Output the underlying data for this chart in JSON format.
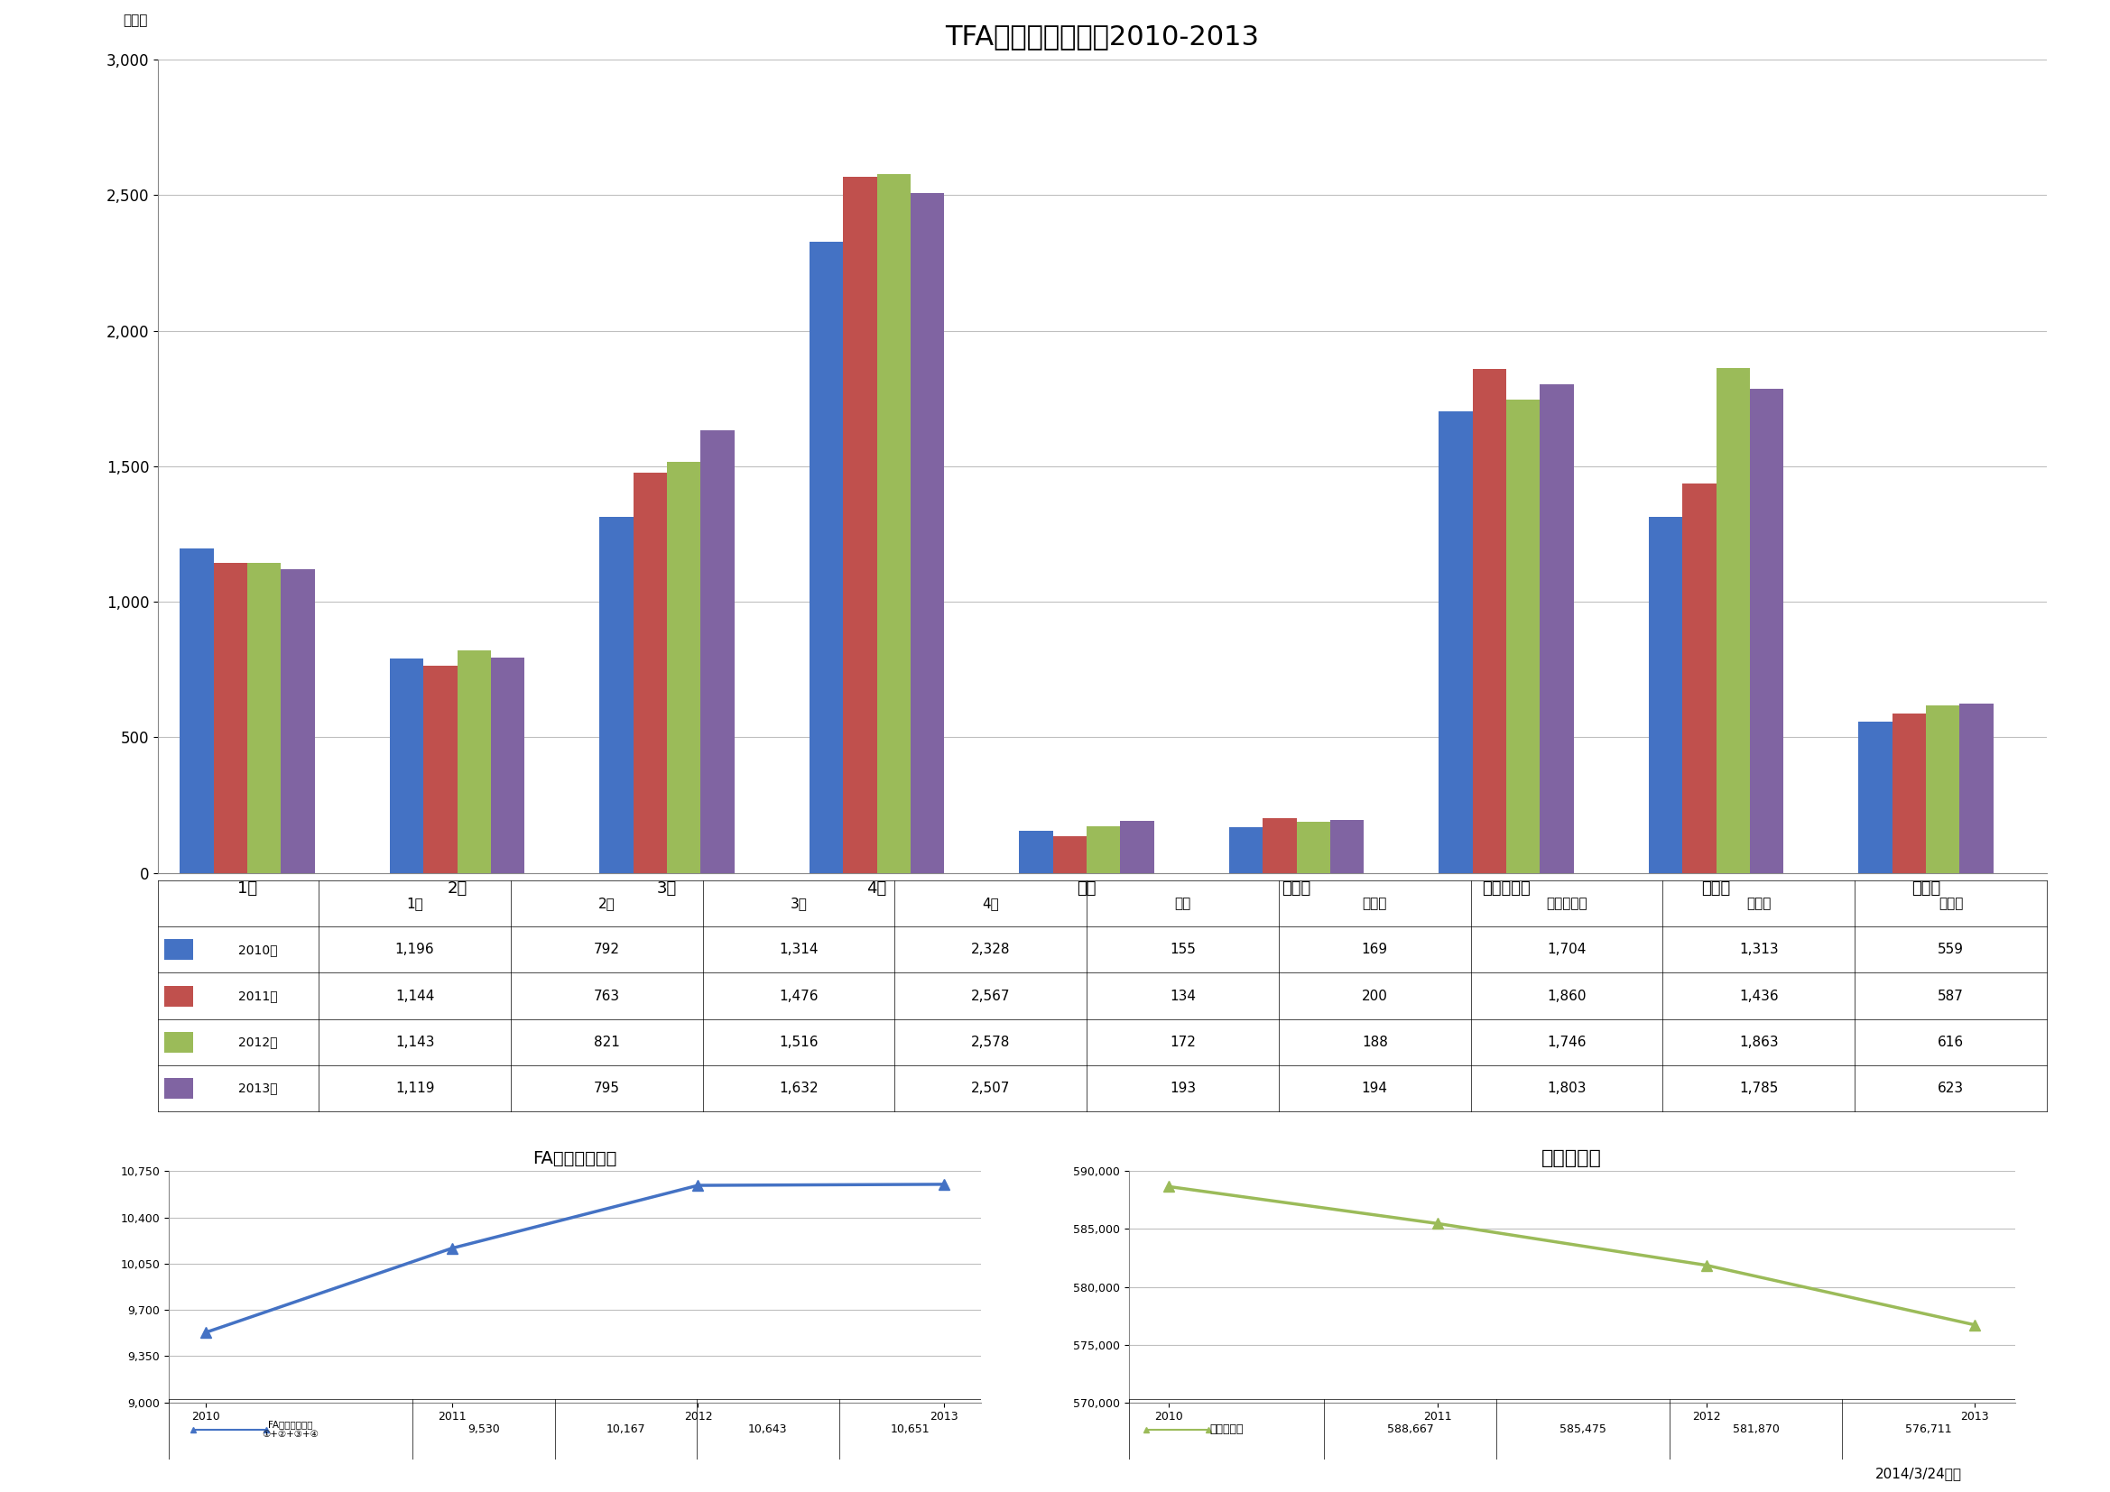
{
  "title": "TFA　登録数推移　2010-2013",
  "ylabel": "登録数",
  "categories": [
    "1種",
    "2種",
    "3種",
    "4種",
    "女子",
    "シニア",
    "フットサル",
    "寡判員",
    "指導者"
  ],
  "years": [
    "2010年",
    "2011年",
    "2012年",
    "2013年"
  ],
  "bar_colors": [
    "#4472C4",
    "#C0504D",
    "#9BBB59",
    "#8064A2"
  ],
  "bar_data": {
    "2010年": [
      1196,
      792,
      1314,
      2328,
      155,
      169,
      1704,
      1313,
      559
    ],
    "2011年": [
      1144,
      763,
      1476,
      2567,
      134,
      200,
      1860,
      1436,
      587
    ],
    "2012年": [
      1143,
      821,
      1516,
      2578,
      172,
      188,
      1746,
      1863,
      616
    ],
    "2013年": [
      1119,
      795,
      1632,
      2507,
      193,
      194,
      1803,
      1785,
      623
    ]
  },
  "ylim_bar": [
    0,
    3000
  ],
  "yticks_bar": [
    0,
    500,
    1000,
    1500,
    2000,
    2500,
    3000
  ],
  "fa_title": "FAファミリー数",
  "fa_years": [
    "2010",
    "2011",
    "2012",
    "2013"
  ],
  "fa_values": [
    9530,
    10167,
    10643,
    10651
  ],
  "fa_yticks": [
    9000,
    9350,
    9700,
    10050,
    10400,
    10750
  ],
  "fa_ylim": [
    9000,
    10750
  ],
  "fa_legend_line1": "FAファミリー数",
  "fa_legend_line2": "①+②+③+④",
  "fa_color": "#4472C4",
  "pop_title": "鳥取県人口",
  "pop_years": [
    "2010",
    "2011",
    "2012",
    "2013"
  ],
  "pop_values": [
    588667,
    585475,
    581870,
    576711
  ],
  "pop_yticks": [
    570000,
    575000,
    580000,
    585000,
    590000
  ],
  "pop_ylim": [
    570000,
    590000
  ],
  "pop_legend": "鳥取県人口",
  "pop_color": "#9BBB59",
  "footnote": "2014/3/24現在",
  "bg_color": "#FFFFFF",
  "grid_color": "#BFBFBF"
}
